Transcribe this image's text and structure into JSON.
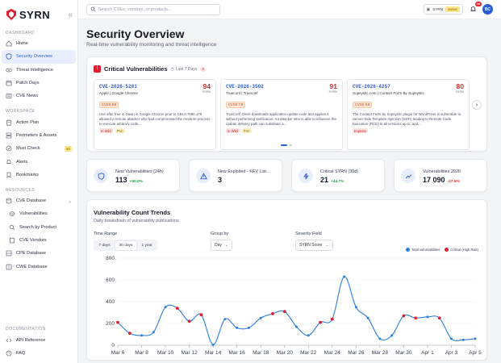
{
  "brand": {
    "name": "SYRN"
  },
  "search": {
    "placeholder": "Search CVEs, vendors, or products..."
  },
  "topbar": {
    "plan_label": "SYRN",
    "role_badge": "owner",
    "notif_count": "99",
    "avatar_initials": "BC"
  },
  "sidebar": {
    "sections": {
      "dashboard": "DASHBOARD",
      "workspace": "WORKSPACE",
      "resources": "RESOURCES",
      "documentation": "DOCUMENTATION"
    },
    "items": {
      "home": "Home",
      "security_overview": "Security Overview",
      "threat_intelligence": "Threat Intelligence",
      "patch_days": "Patch Days",
      "cve_news": "CVE News",
      "action_plan": "Action Plan",
      "perimeters_assets": "Perimeters & Assets",
      "must_check": "Must Check",
      "must_check_badge": "20",
      "alerts": "Alerts",
      "bookmarks": "Bookmarks",
      "cve_database": "CVE Database",
      "vulnerabilities": "Vulnerabilities",
      "search_by_product": "Search by Product",
      "cve_vendors": "CVE Vendors",
      "cpe_database": "CPE Database",
      "cwe_database": "CWE Database",
      "api_reference": "API Reference",
      "faq": "FAQ"
    }
  },
  "page": {
    "title": "Security Overview",
    "subtitle": "Real-time vulnerability monitoring and threat intelligence"
  },
  "critical": {
    "title": "Critical Vulnerabilities",
    "period": "Last 7 Days",
    "count": "4",
    "cards": [
      {
        "id": "CVE-2026-5281",
        "vendor": "Apple | Google Chrome",
        "score": "94",
        "score_label": "SYRN",
        "cvss": "CVSS 8.8",
        "desc": "Use after free in Dawn in Google Chrome prior to 146.0.7680.178 allowed a remote attacker who had compromised the renderer process to execute arbitrary code...",
        "tag1": "In Wild",
        "tag2": "PoC"
      },
      {
        "id": "CVE-2026-3502",
        "vendor": "Trueconf | Trueconf",
        "score": "91",
        "score_label": "SYRN",
        "cvss": "CVSS 7.8",
        "desc": "TrueConf Client downloads application update code and applies it without performing verification. An attacker who is able to influence the update delivery path can substitute a...",
        "tag1": "In Wild",
        "tag2": "PoC"
      },
      {
        "id": "CVE-2026-4257",
        "vendor": "Supsystic.com | Contact Form By Supsystic",
        "score": "80",
        "score_label": "SYRN",
        "cvss": "CVSS 9.8",
        "desc": "The Contact Form by Supsystic plugin for WordPress is vulnerable to Server-Side Template Injection (SSTI) leading to Remote Code Execution (RCE) in all versions up to, and...",
        "tag1": "Exploits",
        "tag2": ""
      }
    ]
  },
  "stats": [
    {
      "title": "New Vulnerabilities (24h)",
      "value": "113",
      "change": "+50.0%",
      "trend": "up"
    },
    {
      "title": "New Exploited - KEV List...",
      "value": "3",
      "change": "",
      "trend": ""
    },
    {
      "title": "Critical SYRN (30d)",
      "value": "21",
      "change": "+44.7%",
      "trend": "up"
    },
    {
      "title": "Vulnerabilities 2026",
      "value": "17 090",
      "change": "-27.5%",
      "trend": "down"
    }
  ],
  "trends": {
    "title": "Vulnerability Count Trends",
    "subtitle": "Daily breakdown of vulnerability publications",
    "time_range_label": "Time Range",
    "ranges": [
      "7 days",
      "30 days",
      "1 year"
    ],
    "selected_range": "30 days",
    "group_by_label": "Group by",
    "group_by_value": "Day",
    "severity_label": "Severity Field",
    "severity_value": "SYRN Score"
  },
  "colors": {
    "accent": "#2a5bd7",
    "critical": "#e11d2e",
    "line": "#2a7de1"
  },
  "chart_data": {
    "type": "line",
    "x": [
      "Mar 6",
      "Mar 7",
      "Mar 8",
      "Mar 9",
      "Mar 10",
      "Mar 11",
      "Mar 12",
      "Mar 13",
      "Mar 14",
      "Mar 15",
      "Mar 16",
      "Mar 17",
      "Mar 18",
      "Mar 19",
      "Mar 20",
      "Mar 21",
      "Mar 22",
      "Mar 23",
      "Mar 24",
      "Mar 25",
      "Mar 26",
      "Mar 27",
      "Mar 28",
      "Mar 29",
      "Mar 30",
      "Mar 31",
      "Apr 1",
      "Apr 2",
      "Apr 3",
      "Apr 4",
      "Apr 5"
    ],
    "xticks": [
      "Mar 6",
      "Mar 8",
      "Mar 10",
      "Mar 12",
      "Mar 14",
      "Mar 16",
      "Mar 18",
      "Mar 20",
      "Mar 22",
      "Mar 24",
      "Mar 26",
      "Mar 28",
      "Mar 30",
      "Apr 1",
      "Apr 3",
      "Apr 5"
    ],
    "yticks": [
      0,
      200,
      400,
      600,
      800
    ],
    "ylim": [
      0,
      800
    ],
    "series": [
      {
        "name": "Total vulnerabilities",
        "color": "#2a7de1",
        "values": [
          210,
          110,
          90,
          120,
          350,
          340,
          220,
          280,
          5,
          240,
          160,
          160,
          250,
          290,
          310,
          170,
          90,
          210,
          240,
          630,
          350,
          250,
          60,
          90,
          270,
          250,
          260,
          250,
          60,
          50,
          60
        ]
      },
      {
        "name": "Critical (High Risk)",
        "color": "#e11d2e",
        "values": [
          210,
          160,
          110,
          120,
          350,
          340,
          220,
          280,
          10,
          200,
          160,
          160,
          250,
          290,
          310,
          170,
          90,
          210,
          240,
          380,
          350,
          250,
          60,
          90,
          270,
          250,
          260,
          250,
          60,
          50,
          60
        ]
      }
    ],
    "critical_marker_days": [
      "Mar 6",
      "Mar 7",
      "Mar 11",
      "Mar 12",
      "Mar 13",
      "Mar 19",
      "Mar 20",
      "Mar 23",
      "Mar 24",
      "Mar 30",
      "Mar 31",
      "Apr 2"
    ],
    "legend": "top-right"
  }
}
